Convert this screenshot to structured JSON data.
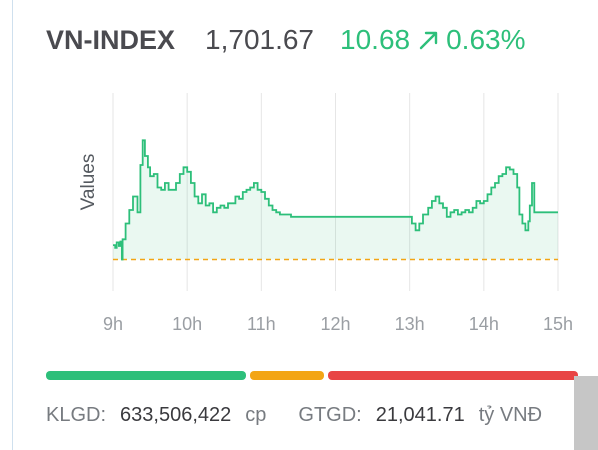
{
  "header": {
    "index_name": "VN-INDEX",
    "value": "1,701.67",
    "change": "10.68",
    "trend_icon": "arrow-up-right-icon",
    "change_pct": "0.63%"
  },
  "colors": {
    "up": "#2dbf7a",
    "reference_line": "#f3a515",
    "neutral": "#f3a515",
    "down": "#e84545",
    "text": "#4a4a4f"
  },
  "chart_data": {
    "type": "line",
    "ylabel": "Values",
    "xlabel": "",
    "x_ticks": [
      "9h",
      "10h",
      "11h",
      "12h",
      "13h",
      "14h",
      "15h"
    ],
    "reference_value": 1691.0,
    "ylim": [
      1684,
      1728
    ],
    "series": [
      {
        "values": [
          [
            9.0,
            1694.2
          ],
          [
            9.03,
            1693.6
          ],
          [
            9.05,
            1694.8
          ],
          [
            9.08,
            1694.0
          ],
          [
            9.1,
            1695.0
          ],
          [
            9.12,
            1691.0
          ],
          [
            9.13,
            1695.5
          ],
          [
            9.17,
            1699.0
          ],
          [
            9.22,
            1702.0
          ],
          [
            9.27,
            1705.0
          ],
          [
            9.33,
            1701.5
          ],
          [
            9.37,
            1712.0
          ],
          [
            9.4,
            1717.5
          ],
          [
            9.43,
            1714.0
          ],
          [
            9.47,
            1711.5
          ],
          [
            9.5,
            1709.5
          ],
          [
            9.55,
            1710.0
          ],
          [
            9.6,
            1707.0
          ],
          [
            9.65,
            1706.5
          ],
          [
            9.7,
            1708.0
          ],
          [
            9.75,
            1706.5
          ],
          [
            9.8,
            1706.5
          ],
          [
            9.85,
            1708.0
          ],
          [
            9.9,
            1710.0
          ],
          [
            9.95,
            1711.5
          ],
          [
            10.0,
            1710.5
          ],
          [
            10.05,
            1708.0
          ],
          [
            10.1,
            1705.0
          ],
          [
            10.15,
            1703.5
          ],
          [
            10.2,
            1705.5
          ],
          [
            10.25,
            1703.0
          ],
          [
            10.3,
            1703.5
          ],
          [
            10.35,
            1701.5
          ],
          [
            10.4,
            1702.5
          ],
          [
            10.45,
            1703.0
          ],
          [
            10.5,
            1702.5
          ],
          [
            10.55,
            1703.5
          ],
          [
            10.6,
            1703.5
          ],
          [
            10.65,
            1705.0
          ],
          [
            10.7,
            1704.5
          ],
          [
            10.75,
            1706.0
          ],
          [
            10.8,
            1706.5
          ],
          [
            10.85,
            1707.0
          ],
          [
            10.9,
            1708.0
          ],
          [
            10.95,
            1706.5
          ],
          [
            11.0,
            1706.0
          ],
          [
            11.05,
            1704.5
          ],
          [
            11.1,
            1703.0
          ],
          [
            11.15,
            1702.0
          ],
          [
            11.2,
            1701.5
          ],
          [
            11.25,
            1701.0
          ],
          [
            11.3,
            1701.0
          ],
          [
            11.4,
            1700.5
          ],
          [
            11.5,
            1700.5
          ],
          [
            13.0,
            1700.5
          ],
          [
            13.03,
            1699.0
          ],
          [
            13.08,
            1697.5
          ],
          [
            13.13,
            1699.0
          ],
          [
            13.18,
            1701.0
          ],
          [
            13.25,
            1702.5
          ],
          [
            13.3,
            1704.0
          ],
          [
            13.35,
            1705.0
          ],
          [
            13.4,
            1703.5
          ],
          [
            13.45,
            1702.5
          ],
          [
            13.5,
            1700.5
          ],
          [
            13.55,
            1701.5
          ],
          [
            13.6,
            1702.0
          ],
          [
            13.65,
            1701.0
          ],
          [
            13.7,
            1701.5
          ],
          [
            13.75,
            1702.0
          ],
          [
            13.8,
            1701.5
          ],
          [
            13.85,
            1702.5
          ],
          [
            13.9,
            1704.0
          ],
          [
            13.95,
            1703.5
          ],
          [
            14.0,
            1704.0
          ],
          [
            14.05,
            1705.5
          ],
          [
            14.1,
            1707.0
          ],
          [
            14.15,
            1708.0
          ],
          [
            14.2,
            1709.5
          ],
          [
            14.25,
            1710.0
          ],
          [
            14.3,
            1711.5
          ],
          [
            14.35,
            1711.0
          ],
          [
            14.4,
            1710.0
          ],
          [
            14.45,
            1707.0
          ],
          [
            14.48,
            1701.0
          ],
          [
            14.52,
            1699.0
          ],
          [
            14.56,
            1697.5
          ],
          [
            14.6,
            1699.5
          ],
          [
            14.62,
            1703.0
          ],
          [
            14.65,
            1708.0
          ],
          [
            14.68,
            1701.5
          ],
          [
            14.75,
            1701.5
          ]
        ]
      }
    ],
    "grid": "vertical",
    "legend": "none"
  },
  "stats_bar": {
    "up_fraction": 0.383,
    "neutral_fraction": 0.147,
    "down_fraction": 0.47
  },
  "footer": {
    "volume_label": "KLGD:",
    "volume_value": "633,506,422",
    "volume_unit": "cp",
    "value_label": "GTGD:",
    "value_value": "21,041.71",
    "value_unit": "tỷ VNĐ"
  }
}
